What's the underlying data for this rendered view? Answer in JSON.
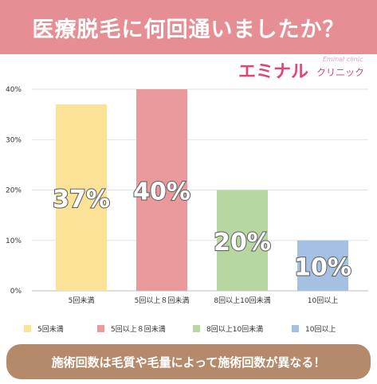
{
  "header": {
    "title": "医療脱毛に何回通いましたか？"
  },
  "logo": {
    "main": "エミナル",
    "sub": "クリニック",
    "en": "Eminal clinic"
  },
  "footer": {
    "text": "施術回数は毛質や毛量によって施術回数が異なる！"
  },
  "chart_data": {
    "type": "bar",
    "categories": [
      "5回未満",
      "5回以上８回未満",
      "8回以上10回未満",
      "10回以上"
    ],
    "values": [
      37,
      40,
      20,
      10
    ],
    "data_labels": [
      "37%",
      "40%",
      "20%",
      "10%"
    ],
    "y_ticks": [
      "0%",
      "10%",
      "20%",
      "30%",
      "40%"
    ],
    "ylim": [
      0,
      40
    ],
    "grid": true,
    "legend_position": "bottom",
    "colors": [
      "#fbe297",
      "#ea9a9a",
      "#b6d6a2",
      "#a4c0e2"
    ],
    "legend": [
      {
        "label": "5回未満",
        "color": "#fbe297"
      },
      {
        "label": "5回以上８回未満",
        "color": "#ea9a9a"
      },
      {
        "label": "8回以上10回未満",
        "color": "#b6d6a2"
      },
      {
        "label": "10回以上",
        "color": "#a4c0e2"
      }
    ]
  }
}
